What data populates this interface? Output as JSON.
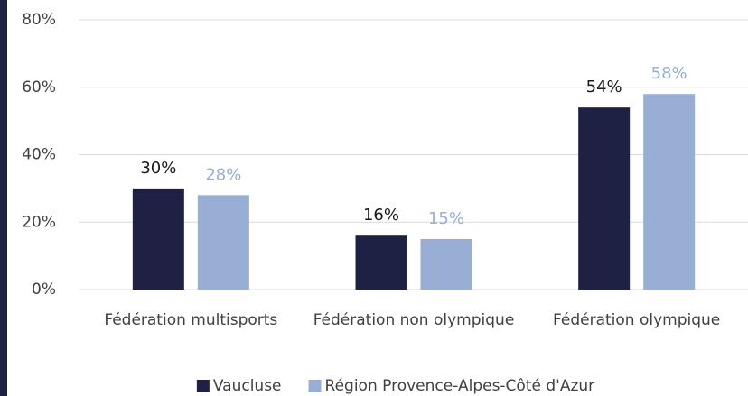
{
  "chart_data": {
    "type": "bar",
    "categories": [
      "Fédération multisports",
      "Fédération non olympique",
      "Fédération olympique"
    ],
    "series": [
      {
        "name": "Vaucluse",
        "color": "#1f2144",
        "values": [
          30,
          16,
          54
        ],
        "value_labels": [
          "30%",
          "16%",
          "54%"
        ]
      },
      {
        "name": "Région Provence-Alpes-Côté d'Azur",
        "color": "#98aed4",
        "values": [
          28,
          15,
          58
        ],
        "value_labels": [
          "28%",
          "15%",
          "58%"
        ]
      }
    ],
    "ylim": [
      0,
      80
    ],
    "yticks": [
      {
        "value": 0,
        "label": "0%"
      },
      {
        "value": 20,
        "label": "20%"
      },
      {
        "value": 40,
        "label": "40%"
      },
      {
        "value": 60,
        "label": "60%"
      },
      {
        "value": 80,
        "label": "80%"
      }
    ],
    "grid": true,
    "legend": "bottom"
  }
}
